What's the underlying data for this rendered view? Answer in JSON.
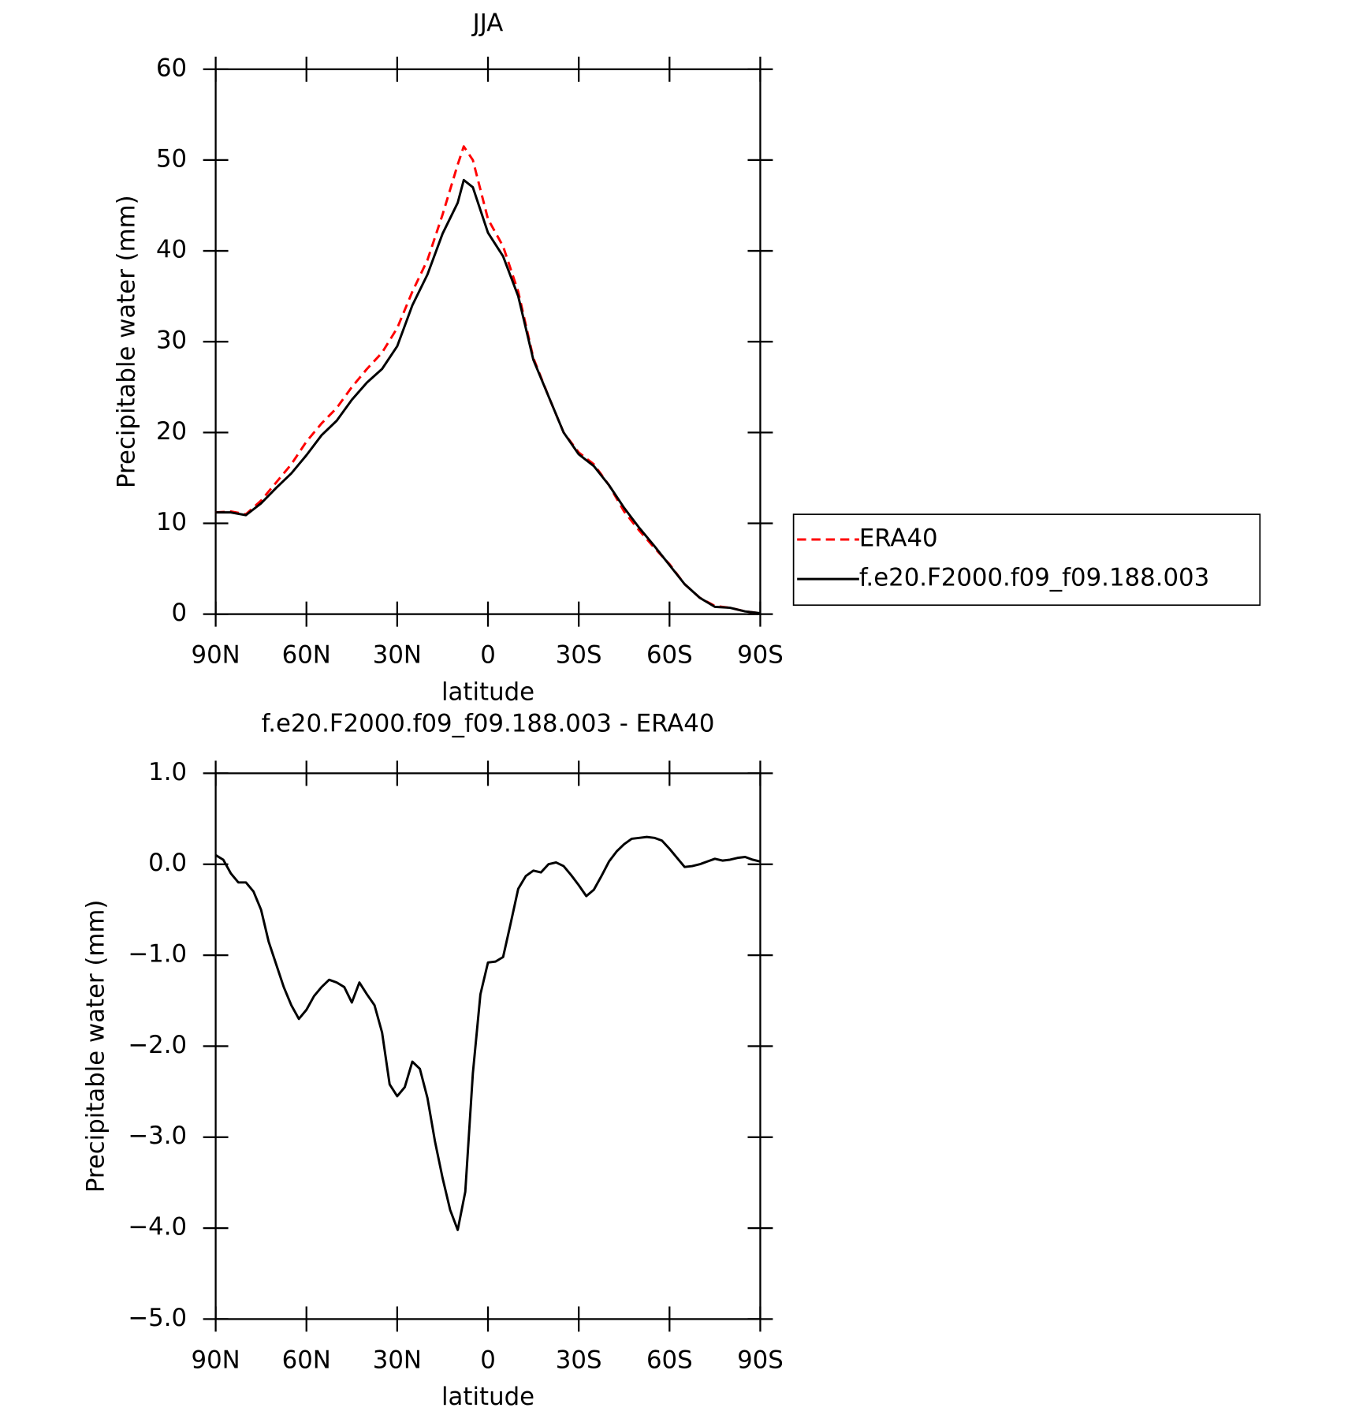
{
  "chart_data": [
    {
      "type": "line",
      "title": "JJA",
      "xlabel": "latitude",
      "ylabel": "Precipitable water (mm)",
      "x": [
        90,
        85,
        80,
        75,
        70,
        65,
        60,
        55,
        50,
        45,
        40,
        35,
        30,
        25,
        20,
        15,
        10,
        8,
        5,
        0,
        -5,
        -10,
        -15,
        -20,
        -25,
        -30,
        -35,
        -40,
        -45,
        -50,
        -55,
        -60,
        -65,
        -70,
        -75,
        -80,
        -85,
        -90
      ],
      "series": [
        {
          "name": "ERA40",
          "color": "#ff0000",
          "line_style": "dashed",
          "values": [
            11.2,
            11.3,
            11.0,
            12.5,
            14.5,
            16.5,
            19,
            21,
            22.7,
            25,
            27,
            28.8,
            31.5,
            35.5,
            39,
            44,
            49.5,
            51.5,
            50,
            43.5,
            40.5,
            35.5,
            28.2,
            24,
            20,
            17.8,
            16.5,
            14.2,
            11.3,
            9.2,
            7.3,
            5.5,
            3.3,
            1.8,
            0.9,
            0.7,
            0.3,
            0.1
          ]
        },
        {
          "name": "f.e20.F2000.f09_f09.188.003",
          "color": "#000000",
          "line_style": "solid",
          "values": [
            11.2,
            11.2,
            10.9,
            12.2,
            13.9,
            15.5,
            17.5,
            19.7,
            21.3,
            23.6,
            25.5,
            27,
            29.5,
            34,
            37.4,
            41.9,
            45.3,
            47.8,
            47,
            42,
            39.4,
            35,
            28,
            24,
            20,
            17.6,
            16.3,
            14.2,
            11.7,
            9.5,
            7.5,
            5.4,
            3.3,
            1.8,
            0.8,
            0.7,
            0.3,
            0.1
          ]
        }
      ],
      "xlim": [
        90,
        -90
      ],
      "xticks": [
        {
          "value": 90,
          "label": "90N"
        },
        {
          "value": 60,
          "label": "60N"
        },
        {
          "value": 30,
          "label": "30N"
        },
        0,
        {
          "value": -30,
          "label": "30S"
        },
        {
          "value": -60,
          "label": "60S"
        },
        {
          "value": -90,
          "label": "90S"
        }
      ],
      "ylim": [
        0,
        60
      ],
      "yticks": [
        0,
        10,
        20,
        30,
        40,
        50,
        60
      ],
      "legend": "right"
    },
    {
      "type": "line",
      "title": "f.e20.F2000.f09_f09.188.003 - ERA40",
      "xlabel": "latitude",
      "ylabel": "Precipitable water (mm)",
      "x": [
        90,
        87.5,
        85,
        82.5,
        80,
        77.5,
        75,
        72.5,
        70,
        67.5,
        65,
        62.5,
        60,
        57.5,
        55,
        52.5,
        50,
        47.5,
        45,
        42.5,
        40,
        37.5,
        35,
        32.5,
        30,
        27.5,
        25,
        22.5,
        20,
        17.5,
        15,
        12.5,
        10,
        7.5,
        5,
        2.5,
        0,
        -2.5,
        -5,
        -7.5,
        -10,
        -12.5,
        -15,
        -17.5,
        -20,
        -22.5,
        -25,
        -27.5,
        -30,
        -32.5,
        -35,
        -37.5,
        -40,
        -42.5,
        -45,
        -47.5,
        -50,
        -52.5,
        -55,
        -57.5,
        -60,
        -62.5,
        -65,
        -67.5,
        -70,
        -72.5,
        -75,
        -77.5,
        -80,
        -82.5,
        -85,
        -87.5,
        -90
      ],
      "values": [
        0.1,
        0.05,
        -0.1,
        -0.2,
        -0.2,
        -0.3,
        -0.5,
        -0.85,
        -1.1,
        -1.35,
        -1.55,
        -1.7,
        -1.6,
        -1.45,
        -1.35,
        -1.27,
        -1.3,
        -1.35,
        -1.52,
        -1.3,
        -1.43,
        -1.55,
        -1.85,
        -2.42,
        -2.55,
        -2.45,
        -2.17,
        -2.25,
        -2.57,
        -3.05,
        -3.45,
        -3.8,
        -4.02,
        -3.6,
        -2.3,
        -1.43,
        -1.08,
        -1.07,
        -1.02,
        -0.65,
        -0.27,
        -0.13,
        -0.07,
        -0.09,
        0.0,
        0.02,
        -0.02,
        -0.12,
        -0.23,
        -0.35,
        -0.28,
        -0.13,
        0.03,
        0.14,
        0.22,
        0.28,
        0.29,
        0.3,
        0.29,
        0.26,
        0.17,
        0.07,
        -0.03,
        -0.02,
        0.0,
        0.03,
        0.06,
        0.04,
        0.05,
        0.07,
        0.08,
        0.05,
        0.03
      ],
      "color": "#000000",
      "xlim": [
        90,
        -90
      ],
      "xticks": [
        {
          "value": 90,
          "label": "90N"
        },
        {
          "value": 60,
          "label": "60N"
        },
        {
          "value": 30,
          "label": "30N"
        },
        0,
        {
          "value": -30,
          "label": "30S"
        },
        {
          "value": -60,
          "label": "60S"
        },
        {
          "value": -90,
          "label": "90S"
        }
      ],
      "ylim": [
        -5,
        1
      ],
      "yticks": [
        {
          "value": -5,
          "label": "−5.0"
        },
        {
          "value": -4,
          "label": "−4.0"
        },
        {
          "value": -3,
          "label": "−3.0"
        },
        {
          "value": -2,
          "label": "−2.0"
        },
        {
          "value": -1,
          "label": "−1.0"
        },
        {
          "value": 0,
          "label": "0.0"
        },
        {
          "value": 1,
          "label": "1.0"
        }
      ]
    }
  ]
}
